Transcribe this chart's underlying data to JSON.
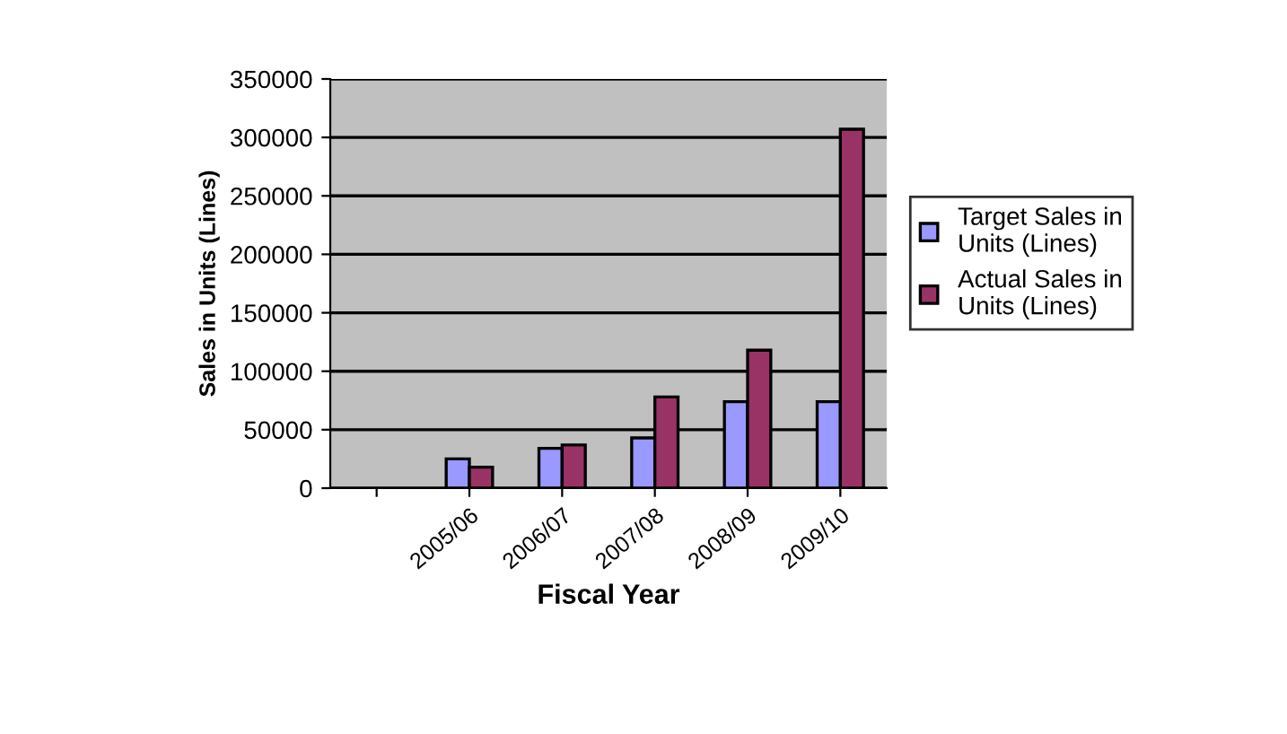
{
  "chart_data": {
    "type": "bar",
    "xlabel": "Fiscal Year",
    "ylabel": "Sales in Units (Lines)",
    "categories": [
      null,
      "2005/06",
      "2006/07",
      "2007/08",
      "2008/09",
      "2009/10"
    ],
    "series": [
      {
        "name": "Target Sales in Units (Lines)",
        "color": "#9999ff",
        "values": [
          null,
          25000,
          34000,
          43000,
          74000,
          74000
        ]
      },
      {
        "name": "Actual Sales in Units (Lines)",
        "color": "#993366",
        "values": [
          null,
          18000,
          37000,
          78000,
          118000,
          307000
        ]
      }
    ],
    "ylim": [
      0,
      350000
    ],
    "yticks": [
      0,
      50000,
      100000,
      150000,
      200000,
      250000,
      300000,
      350000
    ],
    "grid": "y",
    "legend": "right"
  }
}
